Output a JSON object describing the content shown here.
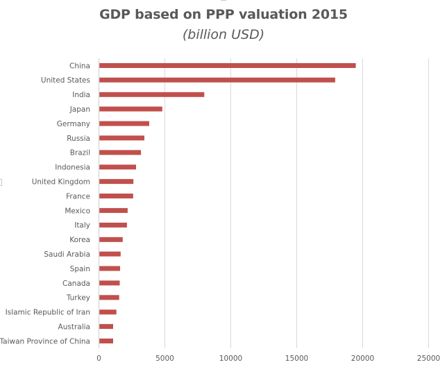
{
  "chart_data": {
    "type": "bar",
    "orientation": "horizontal",
    "title": "GDP based on PPP valuation 2015",
    "subtitle": "(billion USD)",
    "xlabel": "",
    "ylabel": "",
    "categories": [
      "China",
      "United States",
      "India",
      "Japan",
      "Germany",
      "Russia",
      "Brazil",
      "Indonesia",
      "United Kingdom",
      "France",
      "Mexico",
      "Italy",
      "Korea",
      "Saudi Arabia",
      "Spain",
      "Canada",
      "Turkey",
      "Islamic Republic of Iran",
      "Australia",
      "Taiwan Province of China"
    ],
    "values": [
      19530,
      17970,
      8040,
      4860,
      3870,
      3500,
      3240,
      2870,
      2670,
      2650,
      2230,
      2180,
      1860,
      1700,
      1660,
      1630,
      1590,
      1380,
      1130,
      1130
    ],
    "xlim": [
      0,
      25000
    ],
    "xticks": [
      0,
      5000,
      10000,
      15000,
      20000,
      25000
    ],
    "xtick_labels": [
      "0",
      "5000",
      "10000",
      "15000",
      "20000",
      "25000"
    ],
    "grid": "vertical",
    "legend": "none",
    "bar_color": "#C0504D",
    "grid_color": "#D9D9D9",
    "text_color": "#595959"
  }
}
